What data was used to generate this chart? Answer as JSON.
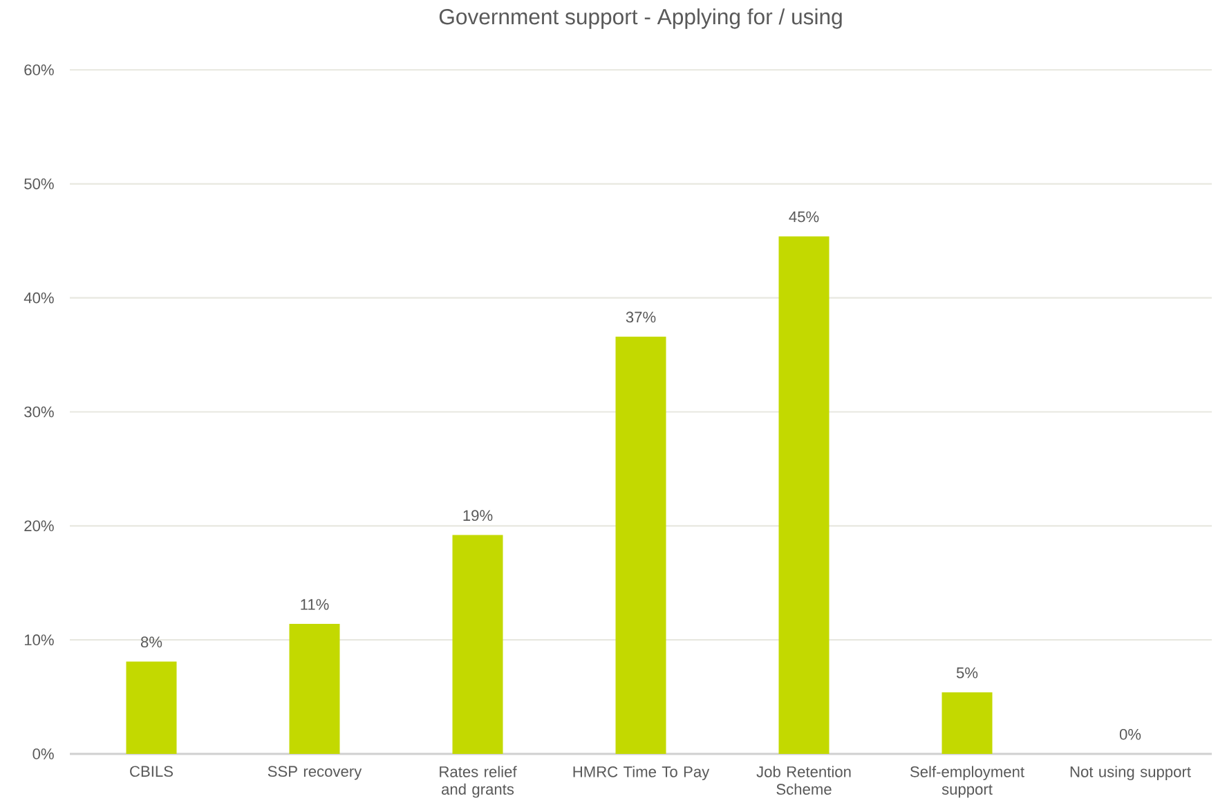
{
  "chart_data": {
    "type": "bar",
    "title": "Government support - Applying for / using",
    "categories": [
      "CBILS",
      "SSP recovery",
      "Rates relief and grants",
      "HMRC Time To Pay",
      "Job Retention Scheme",
      "Self-employment support",
      "Not using support"
    ],
    "values": [
      8.1,
      11.4,
      19.2,
      36.6,
      45.4,
      5.4,
      0
    ],
    "value_labels": [
      "8%",
      "11%",
      "19%",
      "37%",
      "45%",
      "5%",
      "0%"
    ],
    "color": "#c3d900",
    "ylim": [
      0,
      60
    ],
    "yticks": [
      {
        "value": 0,
        "label": "0%"
      },
      {
        "value": 10,
        "label": "10%"
      },
      {
        "value": 20,
        "label": "20%"
      },
      {
        "value": 30,
        "label": "30%"
      },
      {
        "value": 40,
        "label": "40%"
      },
      {
        "value": 50,
        "label": "50%"
      },
      {
        "value": 60,
        "label": "60%"
      }
    ],
    "grid": "y"
  }
}
